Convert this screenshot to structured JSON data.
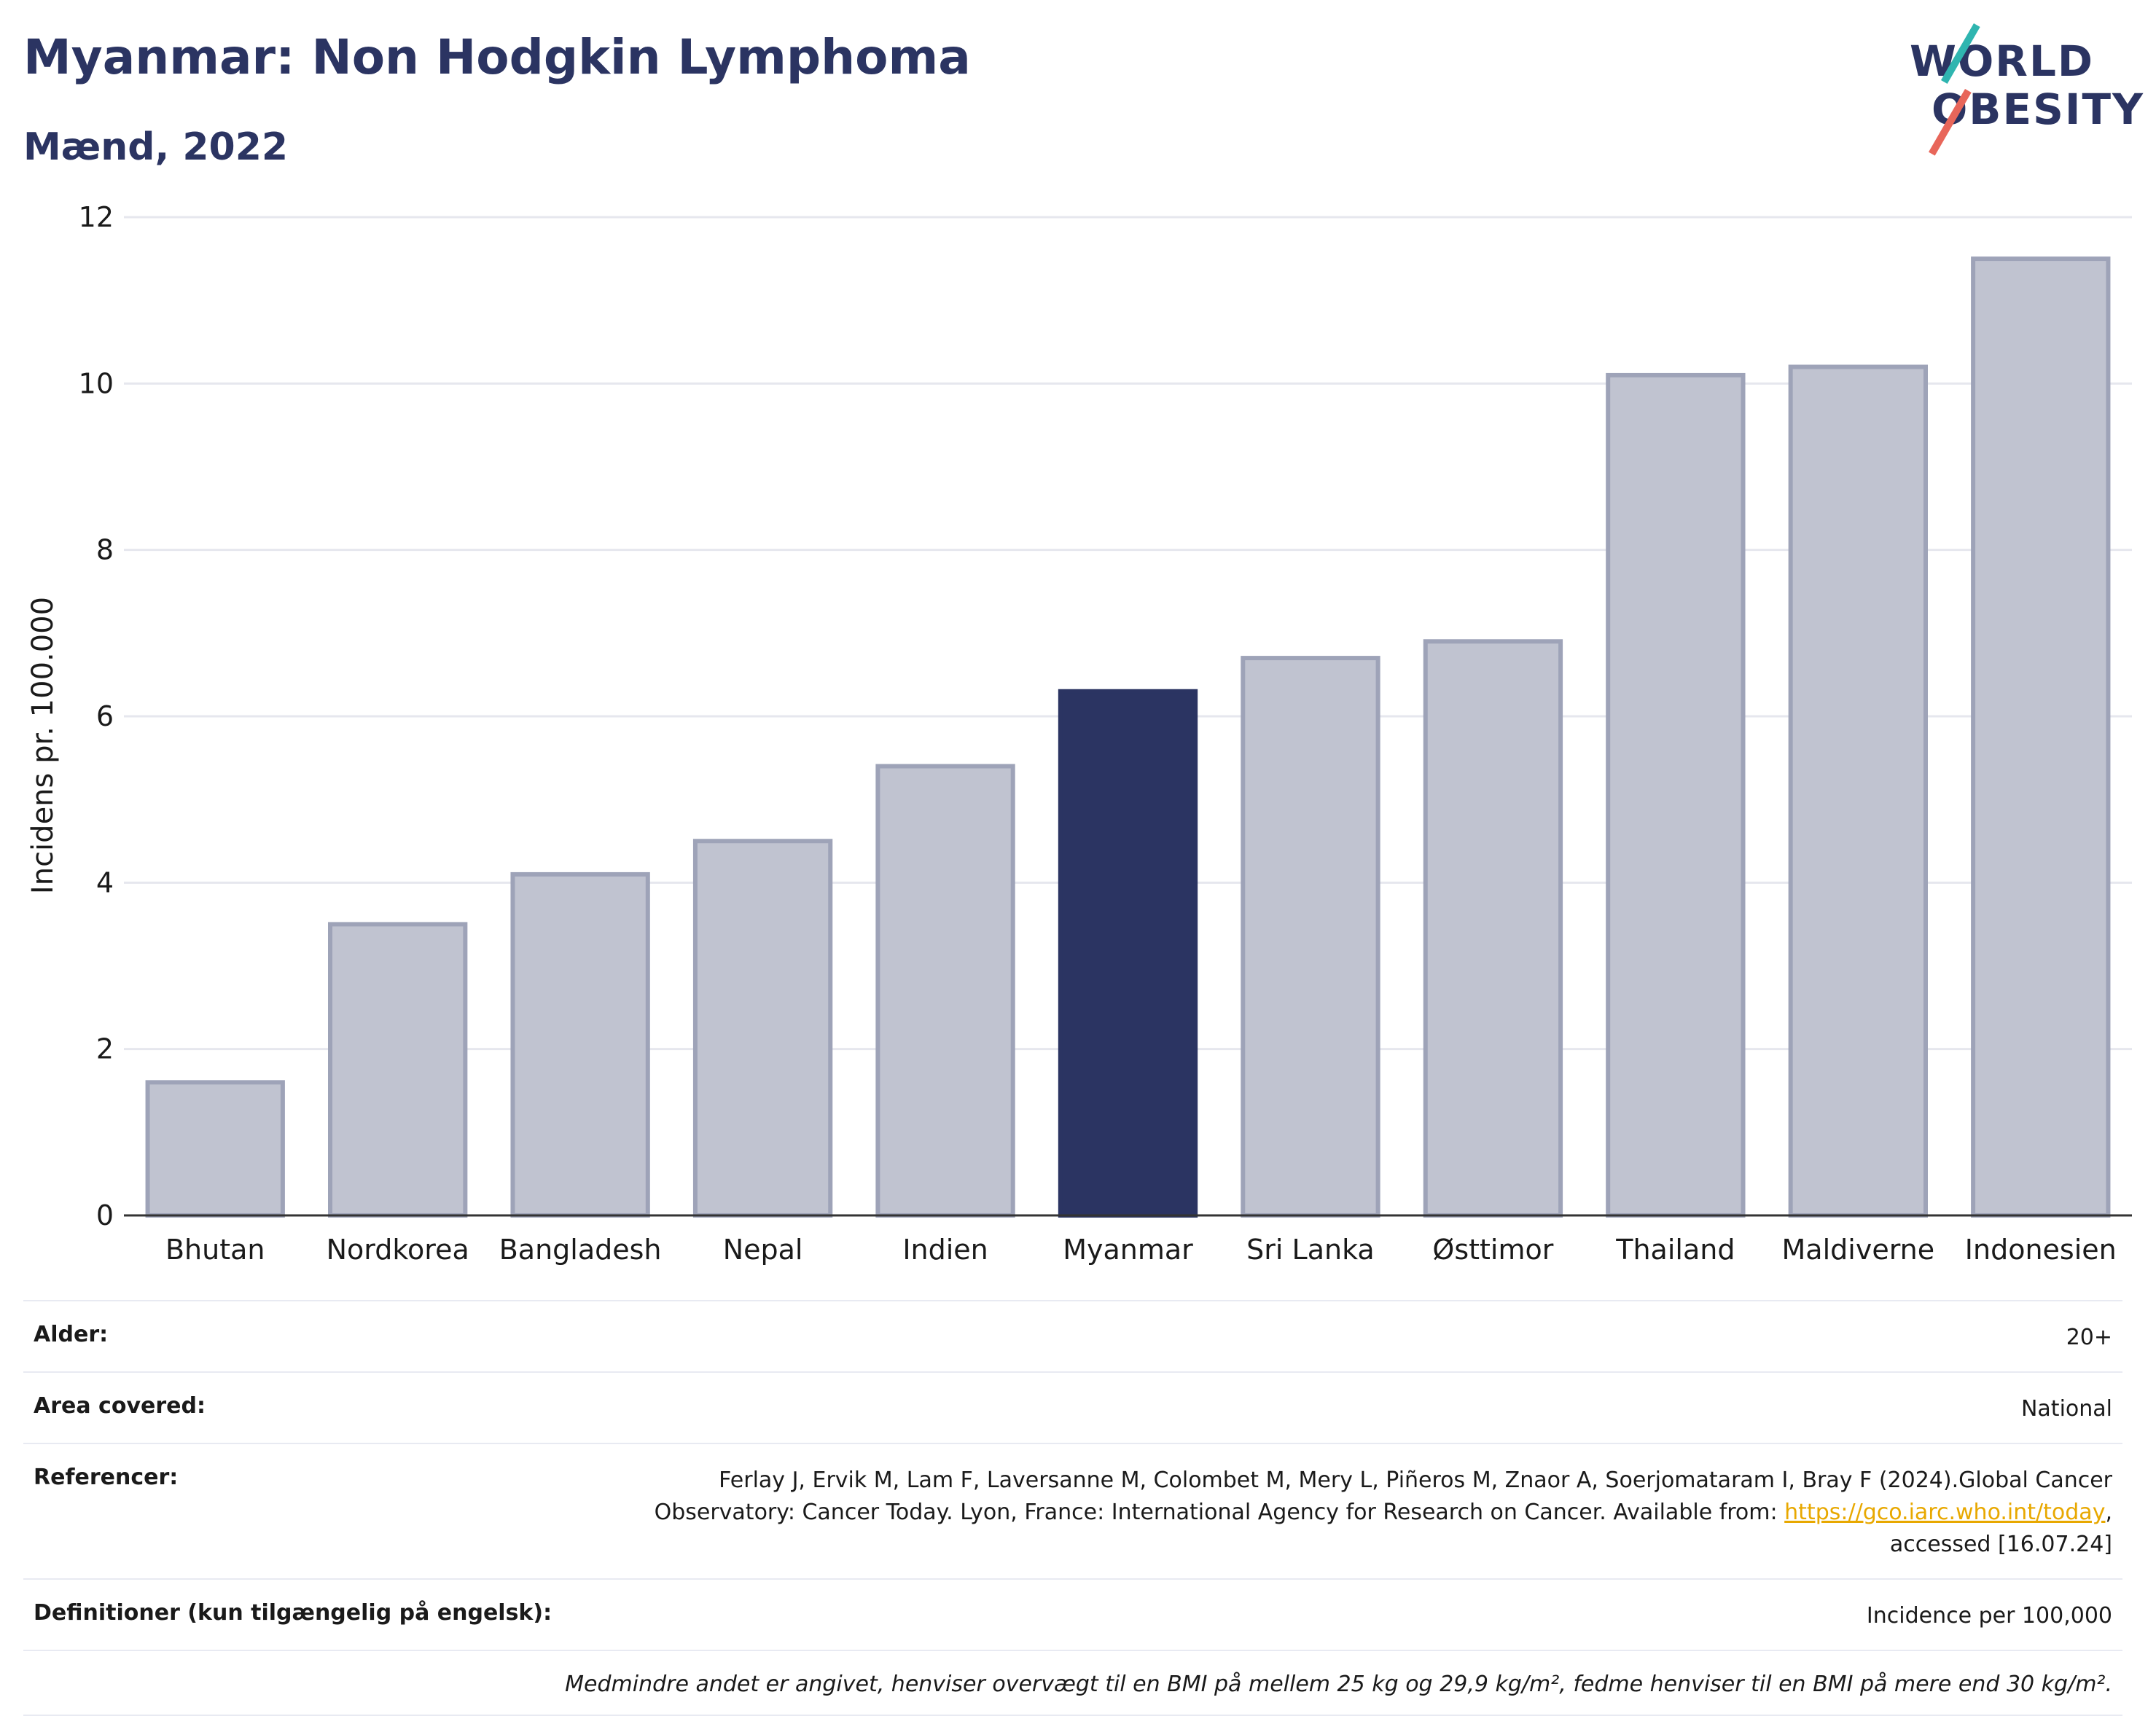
{
  "header": {
    "title": "Myanmar: Non Hodgkin Lymphoma",
    "subtitle": "Mænd, 2022"
  },
  "logo": {
    "line1": "WORLD",
    "line2": "OBESITY"
  },
  "chart_data": {
    "type": "bar",
    "categories": [
      "Bhutan",
      "Nordkorea",
      "Bangladesh",
      "Nepal",
      "Indien",
      "Myanmar",
      "Sri Lanka",
      "Østtimor",
      "Thailand",
      "Maldiverne",
      "Indonesien"
    ],
    "values": [
      1.6,
      3.5,
      4.1,
      4.5,
      5.4,
      6.3,
      6.7,
      6.9,
      10.1,
      10.2,
      11.5
    ],
    "highlight": "Myanmar",
    "ylabel": "Incidens pr. 100.000",
    "xlabel": "",
    "ylim": [
      0,
      12
    ],
    "yticks": [
      0,
      2,
      4,
      6,
      8,
      10,
      12
    ],
    "grid": true,
    "colors": {
      "bar": "#c0c3d0",
      "bar_border": "#9ea3b8",
      "highlight": "#2b3462",
      "grid": "#e6e7ee",
      "axis": "#333333"
    }
  },
  "meta": {
    "age_label": "Alder:",
    "age_value": "20+",
    "area_label": "Area covered:",
    "area_value": "National",
    "ref_label": "Referencer:",
    "ref_text_1": "Ferlay J, Ervik M, Lam F, Laversanne M, Colombet M, Mery L, Piñeros M, Znaor A, Soerjomataram I, Bray F (2024).Global Cancer",
    "ref_text_2": "Observatory: Cancer Today. Lyon, France: International Agency for Research on Cancer. Available from: ",
    "ref_link": "https://gco.iarc.who.int/today",
    "ref_text_3": ",",
    "ref_text_4": "accessed [16.07.24]",
    "def_label": "Definitioner (kun tilgængelig på engelsk):",
    "def_value": "Incidence per 100,000",
    "note": "Medmindre andet er angivet, henviser overvægt til en BMI på mellem 25 kg og 29,9 kg/m², fedme henviser til en BMI på mere end 30 kg/m²."
  }
}
